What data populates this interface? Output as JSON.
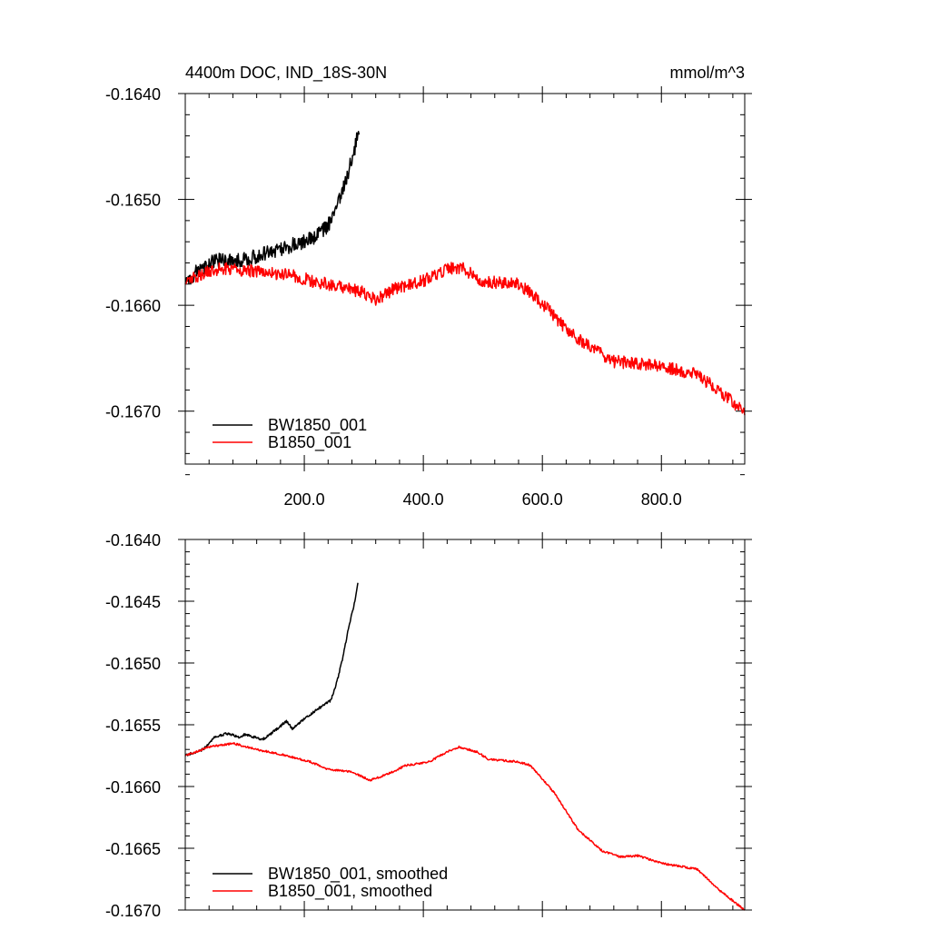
{
  "chart_data": [
    {
      "type": "line",
      "title": "4400m DOC, IND_18S-30N",
      "units": "mmol/m^3",
      "xlim": [
        0,
        940
      ],
      "ylim": [
        -0.1675,
        -0.164
      ],
      "x_ticks": [
        200,
        400,
        600,
        800
      ],
      "x_tick_labels": [
        "200.0",
        "400.0",
        "600.0",
        "800.0"
      ],
      "y_ticks": [
        -0.164,
        -0.165,
        -0.166,
        -0.167
      ],
      "y_tick_labels": [
        "-0.1640",
        "-0.1650",
        "-0.1660",
        "-0.1670"
      ],
      "legend_position": "bottom-left",
      "series": [
        {
          "name": "BW1850_001",
          "color": "#000000",
          "noise": 7e-05,
          "points": [
            [
              0,
              -0.16578
            ],
            [
              20,
              -0.16568
            ],
            [
              50,
              -0.16558
            ],
            [
              100,
              -0.16557
            ],
            [
              150,
              -0.16548
            ],
            [
              200,
              -0.1654
            ],
            [
              220,
              -0.16535
            ],
            [
              240,
              -0.16525
            ],
            [
              255,
              -0.16505
            ],
            [
              265,
              -0.1649
            ],
            [
              275,
              -0.16472
            ],
            [
              285,
              -0.16452
            ],
            [
              292,
              -0.16432
            ]
          ]
        },
        {
          "name": "B1850_001",
          "color": "#ff0000",
          "noise": 6e-05,
          "points": [
            [
              0,
              -0.16578
            ],
            [
              30,
              -0.1657
            ],
            [
              60,
              -0.16565
            ],
            [
              120,
              -0.16568
            ],
            [
              180,
              -0.16572
            ],
            [
              220,
              -0.16578
            ],
            [
              260,
              -0.16582
            ],
            [
              300,
              -0.16588
            ],
            [
              320,
              -0.16595
            ],
            [
              350,
              -0.16585
            ],
            [
              400,
              -0.16577
            ],
            [
              440,
              -0.16565
            ],
            [
              465,
              -0.16565
            ],
            [
              500,
              -0.16577
            ],
            [
              560,
              -0.1658
            ],
            [
              600,
              -0.16598
            ],
            [
              640,
              -0.16622
            ],
            [
              680,
              -0.1664
            ],
            [
              720,
              -0.16653
            ],
            [
              760,
              -0.16655
            ],
            [
              800,
              -0.16658
            ],
            [
              860,
              -0.16665
            ],
            [
              900,
              -0.16683
            ],
            [
              940,
              -0.167
            ]
          ]
        }
      ]
    },
    {
      "type": "line",
      "title": "",
      "units": "",
      "xlim": [
        0,
        940
      ],
      "ylim": [
        -0.167,
        -0.164
      ],
      "x_ticks": [
        200,
        400,
        600,
        800
      ],
      "x_tick_labels": [],
      "y_ticks": [
        -0.164,
        -0.1645,
        -0.165,
        -0.1655,
        -0.166,
        -0.1665,
        -0.167
      ],
      "y_tick_labels": [
        "-0.1640",
        "-0.1645",
        "-0.1650",
        "-0.1655",
        "-0.1660",
        "-0.1665",
        "-0.1670"
      ],
      "legend_position": "bottom-left",
      "series": [
        {
          "name": "BW1850_001, smoothed",
          "color": "#000000",
          "noise": 1e-05,
          "points": [
            [
              0,
              -0.16575
            ],
            [
              30,
              -0.1657
            ],
            [
              50,
              -0.1656
            ],
            [
              70,
              -0.16557
            ],
            [
              90,
              -0.1656
            ],
            [
              100,
              -0.16558
            ],
            [
              130,
              -0.16562
            ],
            [
              150,
              -0.16555
            ],
            [
              170,
              -0.16547
            ],
            [
              180,
              -0.16553
            ],
            [
              200,
              -0.16545
            ],
            [
              230,
              -0.16535
            ],
            [
              245,
              -0.1653
            ],
            [
              255,
              -0.16515
            ],
            [
              265,
              -0.16495
            ],
            [
              275,
              -0.1647
            ],
            [
              285,
              -0.1645
            ],
            [
              290,
              -0.16435
            ]
          ]
        },
        {
          "name": "B1850_001, smoothed",
          "color": "#ff0000",
          "noise": 8e-06,
          "points": [
            [
              0,
              -0.16575
            ],
            [
              40,
              -0.16568
            ],
            [
              80,
              -0.16565
            ],
            [
              120,
              -0.1657
            ],
            [
              170,
              -0.16575
            ],
            [
              210,
              -0.1658
            ],
            [
              240,
              -0.16586
            ],
            [
              280,
              -0.16588
            ],
            [
              310,
              -0.16595
            ],
            [
              340,
              -0.1659
            ],
            [
              370,
              -0.16583
            ],
            [
              410,
              -0.1658
            ],
            [
              440,
              -0.16572
            ],
            [
              460,
              -0.16568
            ],
            [
              490,
              -0.16572
            ],
            [
              510,
              -0.16578
            ],
            [
              560,
              -0.1658
            ],
            [
              580,
              -0.16583
            ],
            [
              620,
              -0.16605
            ],
            [
              660,
              -0.16635
            ],
            [
              700,
              -0.16652
            ],
            [
              730,
              -0.16657
            ],
            [
              760,
              -0.16656
            ],
            [
              800,
              -0.16662
            ],
            [
              860,
              -0.16667
            ],
            [
              900,
              -0.16685
            ],
            [
              940,
              -0.167
            ]
          ]
        }
      ]
    }
  ]
}
